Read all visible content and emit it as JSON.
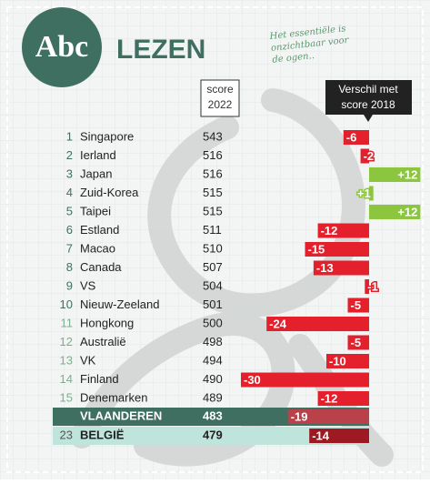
{
  "chart_data": {
    "type": "bar",
    "logo": "Abc",
    "title": "LEZEN",
    "note": [
      "Het essentiële is",
      "onzichtbaar voor",
      "de ogen.."
    ],
    "score_header": [
      "score",
      "2022"
    ],
    "diff_header": [
      "Verschil met",
      "score 2018"
    ],
    "ranks": [
      1,
      2,
      3,
      4,
      5,
      6,
      7,
      8,
      9,
      10,
      11,
      12,
      13,
      14,
      15,
      null,
      23
    ],
    "categories": [
      "Singapore",
      "Ierland",
      "Japan",
      "Zuid-Korea",
      "Taipei",
      "Estland",
      "Macao",
      "Canada",
      "VS",
      "Nieuw-Zeeland",
      "Hongkong",
      "Australië",
      "VK",
      "Finland",
      "Denemarken",
      "VLAANDEREN",
      "BELGIË"
    ],
    "scores": [
      543,
      516,
      516,
      515,
      515,
      511,
      510,
      507,
      504,
      501,
      500,
      498,
      494,
      490,
      489,
      483,
      479
    ],
    "values": [
      -6,
      -2,
      12,
      1,
      12,
      -12,
      -15,
      -13,
      -1,
      -5,
      -24,
      -5,
      -10,
      -30,
      -12,
      -19,
      -14
    ],
    "value_labels": [
      "-6",
      "-2",
      "+12",
      "+1",
      "+12",
      "-12",
      "-15",
      "-13",
      "-1",
      "-5",
      "-24",
      "-5",
      "-10",
      "-30",
      "-12",
      "-19",
      "-14"
    ],
    "color_negative": "#e3202b",
    "color_positive": "#8cc63f"
  }
}
